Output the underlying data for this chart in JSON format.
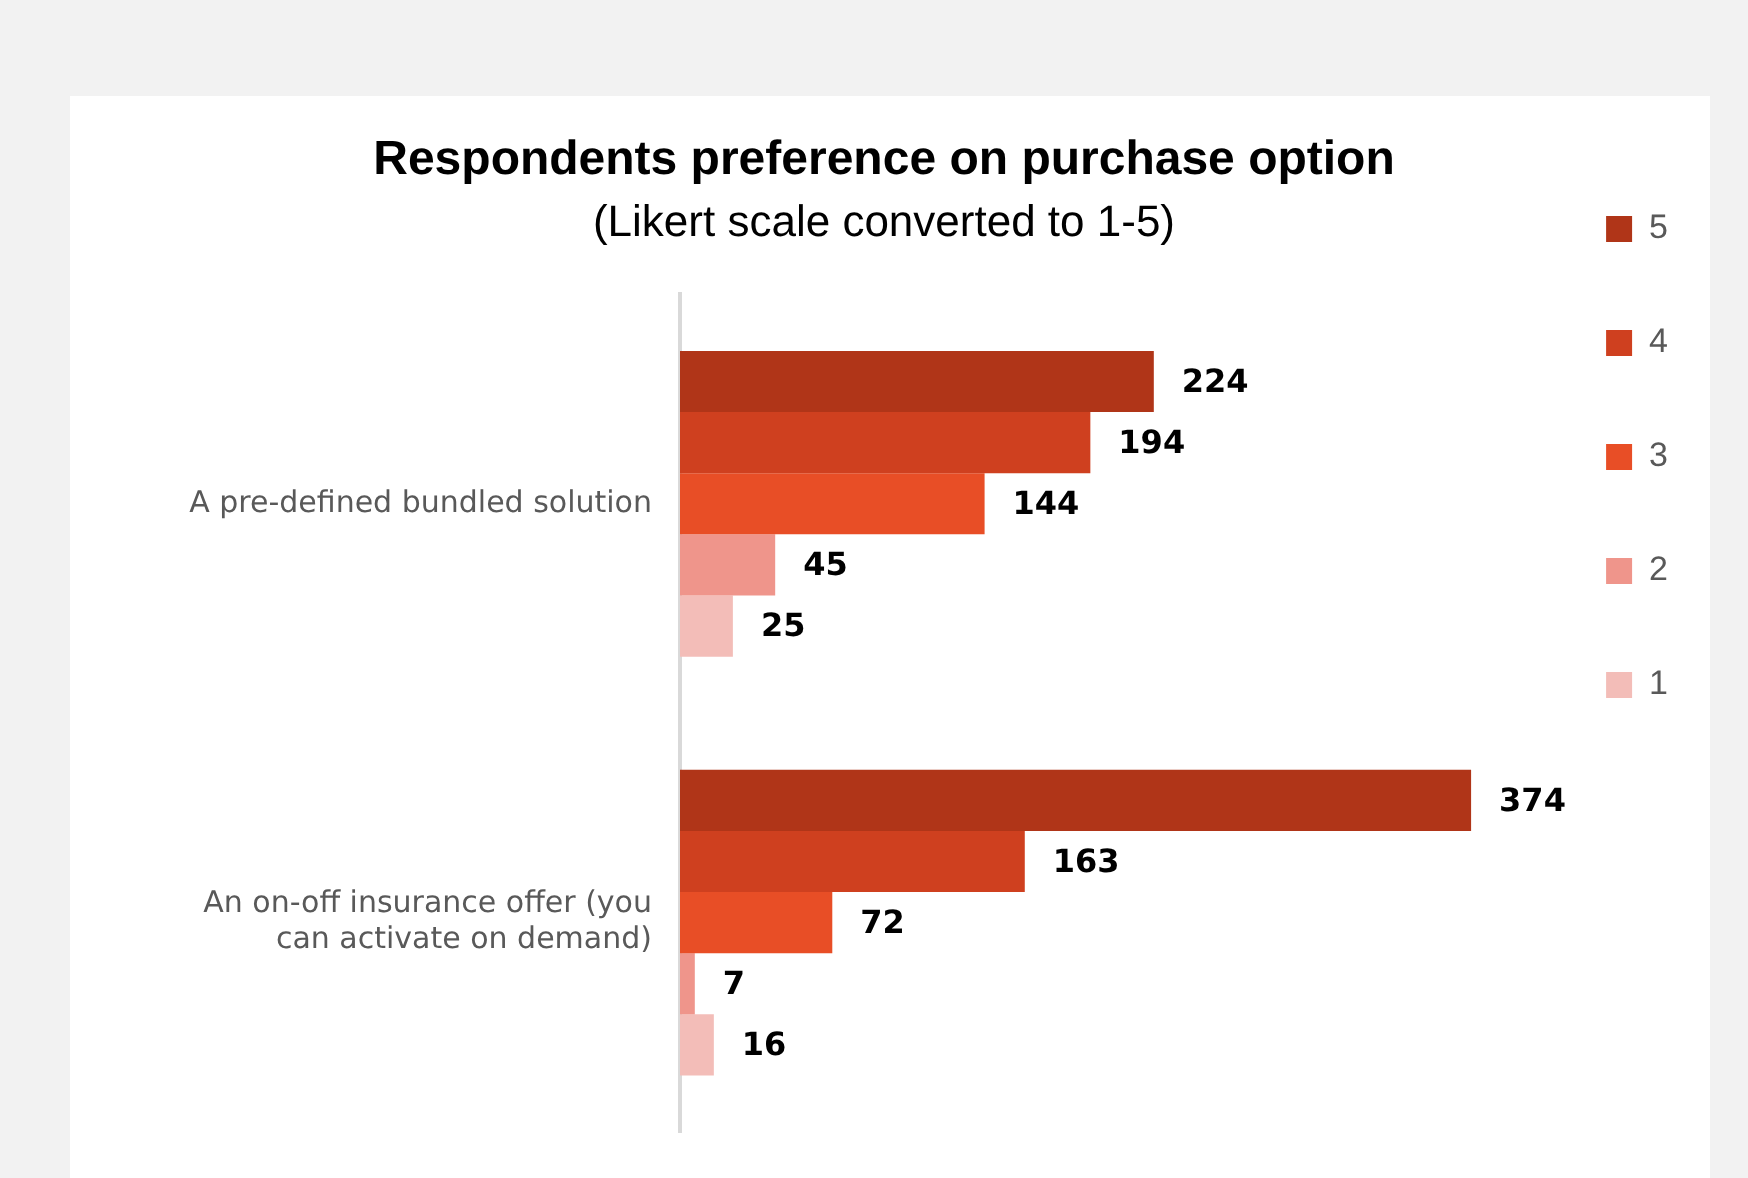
{
  "chart_data": {
    "type": "bar",
    "orientation": "horizontal",
    "title": "Respondents preference on purchase option",
    "subtitle": "(Likert scale converted to 1-5)",
    "categories": [
      "A pre-defined bundled solution",
      "An on-off insurance offer (you can activate on demand)"
    ],
    "series": [
      {
        "name": "5",
        "color": "#b03518",
        "values": [
          224,
          374
        ]
      },
      {
        "name": "4",
        "color": "#cf401f",
        "values": [
          194,
          163
        ]
      },
      {
        "name": "3",
        "color": "#e84e26",
        "values": [
          144,
          72
        ]
      },
      {
        "name": "2",
        "color": "#ef958b",
        "values": [
          45,
          7
        ]
      },
      {
        "name": "1",
        "color": "#f3bdb8",
        "values": [
          25,
          16
        ]
      }
    ],
    "data_labels": true,
    "legend": "top right"
  }
}
